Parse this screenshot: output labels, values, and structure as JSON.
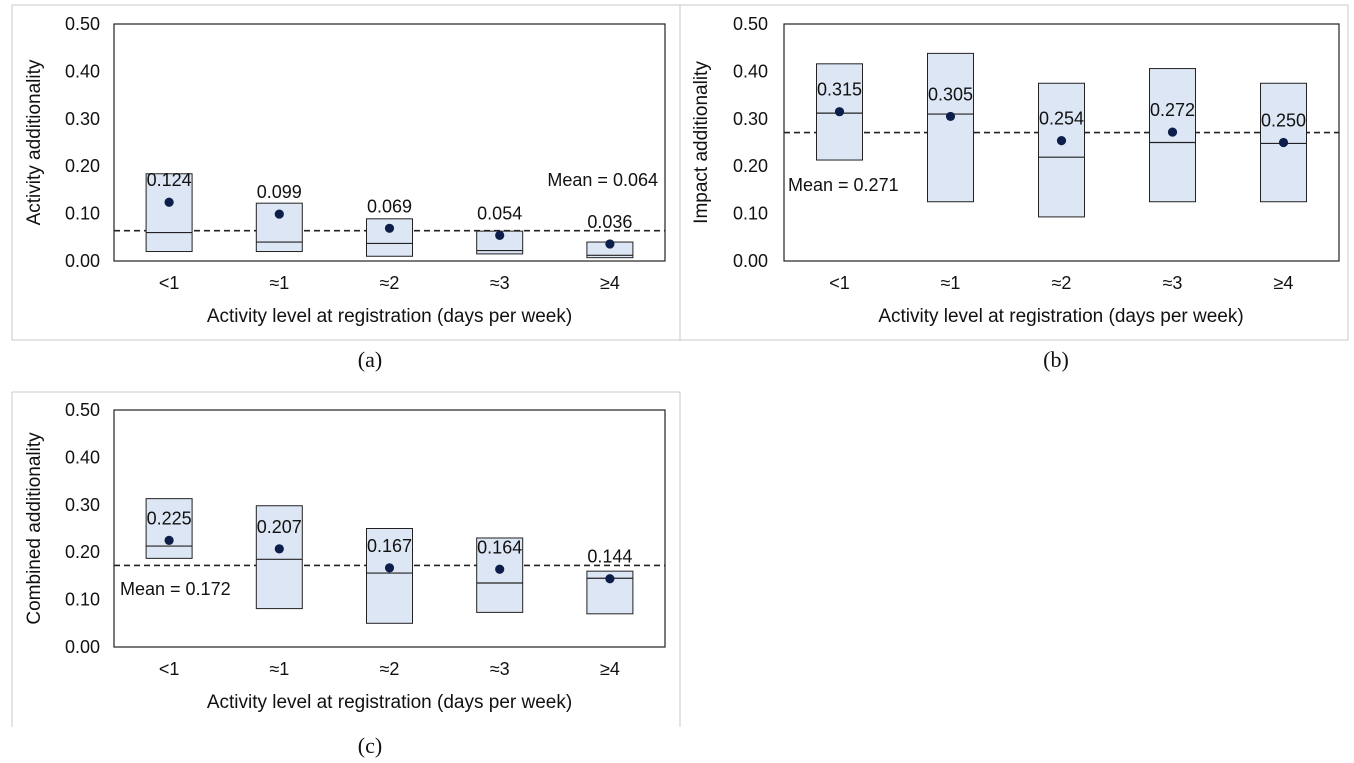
{
  "chart_data": [
    {
      "type": "box",
      "caption": "(a)",
      "xlabel": "Activity level at registration (days per week)",
      "ylabel": "Activity additionality",
      "ylim": [
        0,
        0.5
      ],
      "yticks": [
        "0.00",
        "0.10",
        "0.20",
        "0.30",
        "0.40",
        "0.50"
      ],
      "categories": [
        "<1",
        "≈1",
        "≈2",
        "≈3",
        "≥4"
      ],
      "means": [
        0.124,
        0.099,
        0.069,
        0.054,
        0.036
      ],
      "mean_labels": [
        "0.124",
        "0.099",
        "0.069",
        "0.054",
        "0.036"
      ],
      "medians": [
        0.06,
        0.04,
        0.037,
        0.022,
        0.012
      ],
      "q1": [
        0.02,
        0.02,
        0.01,
        0.015,
        0.007
      ],
      "q3": [
        0.184,
        0.122,
        0.089,
        0.063,
        0.04
      ],
      "overall_mean": 0.064,
      "mean_label": "Mean = 0.064"
    },
    {
      "type": "box",
      "caption": "(b)",
      "xlabel": "Activity level at registration (days per week)",
      "ylabel": "Impact additionality",
      "ylim": [
        0,
        0.5
      ],
      "yticks": [
        "0.00",
        "0.10",
        "0.20",
        "0.30",
        "0.40",
        "0.50"
      ],
      "categories": [
        "<1",
        "≈1",
        "≈2",
        "≈3",
        "≥4"
      ],
      "means": [
        0.315,
        0.305,
        0.254,
        0.272,
        0.25
      ],
      "mean_labels": [
        "0.315",
        "0.305",
        "0.254",
        "0.272",
        "0.250"
      ],
      "medians": [
        0.312,
        0.31,
        0.219,
        0.25,
        0.248
      ],
      "q1": [
        0.213,
        0.125,
        0.093,
        0.125,
        0.125
      ],
      "q3": [
        0.416,
        0.438,
        0.375,
        0.406,
        0.375
      ],
      "overall_mean": 0.271,
      "mean_label": "Mean = 0.271"
    },
    {
      "type": "box",
      "caption": "(c)",
      "xlabel": "Activity level at registration (days per week)",
      "ylabel": "Combined additionality",
      "ylim": [
        0,
        0.5
      ],
      "yticks": [
        "0.00",
        "0.10",
        "0.20",
        "0.30",
        "0.40",
        "0.50"
      ],
      "categories": [
        "<1",
        "≈1",
        "≈2",
        "≈3",
        "≥4"
      ],
      "means": [
        0.225,
        0.207,
        0.167,
        0.164,
        0.144
      ],
      "mean_labels": [
        "0.225",
        "0.207",
        "0.167",
        "0.164",
        "0.144"
      ],
      "medians": [
        0.213,
        0.185,
        0.156,
        0.135,
        0.145
      ],
      "q1": [
        0.187,
        0.081,
        0.05,
        0.073,
        0.07
      ],
      "q3": [
        0.313,
        0.298,
        0.25,
        0.23,
        0.16
      ],
      "overall_mean": 0.172,
      "mean_label": "Mean = 0.172"
    }
  ],
  "style": {
    "box_fill": "#dde6f4",
    "box_stroke": "#222222",
    "marker_color": "#0d1e4a",
    "frame_color": "#c8c8c8"
  }
}
